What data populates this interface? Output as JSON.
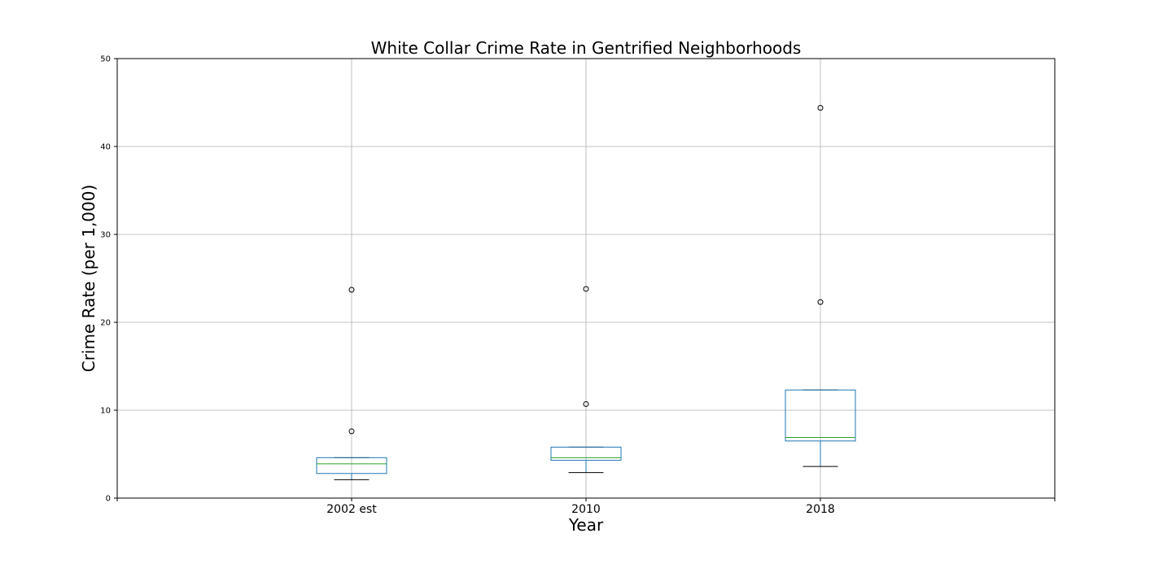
{
  "chart_data": {
    "type": "box",
    "title": "White Collar Crime Rate in Gentrified Neighborhoods",
    "xlabel": "Year",
    "ylabel": "Crime Rate (per 1,000)",
    "ylim": [
      0,
      50
    ],
    "yticks": [
      0,
      10,
      20,
      30,
      40,
      50
    ],
    "grid": true,
    "categories": [
      "2002 est",
      "2010",
      "2018"
    ],
    "boxes": [
      {
        "category": "2002 est",
        "whislo": 2.1,
        "q1": 2.8,
        "med": 3.9,
        "q3": 4.6,
        "whishi": 4.6,
        "fliers": [
          7.6,
          23.7
        ]
      },
      {
        "category": "2010",
        "whislo": 2.9,
        "q1": 4.3,
        "med": 4.6,
        "q3": 5.8,
        "whishi": 5.8,
        "fliers": [
          10.7,
          23.8
        ]
      },
      {
        "category": "2018",
        "whislo": 3.6,
        "q1": 6.5,
        "med": 6.9,
        "q3": 12.3,
        "whishi": 12.3,
        "fliers": [
          22.3,
          44.4
        ]
      }
    ],
    "colors": {
      "box": "#1f77b4",
      "median": "#2ca02c",
      "whisker": "#000000",
      "grid": "#b0b0b0"
    }
  }
}
